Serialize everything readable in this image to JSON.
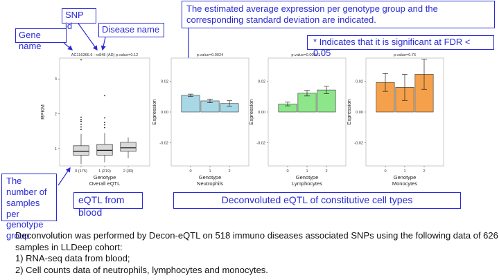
{
  "callouts": {
    "gene_name": "Gene name",
    "snp_id": "SNP id",
    "disease_name": "Disease  name",
    "estimated": "The estimated average expression per genotype group and the corresponding standard deviation are indicated.",
    "significance": "* Indicates that it is significant at FDR < 0.05",
    "num_samples": "The number of samples per genotype group",
    "eqtl_blood": "eQTL from blood",
    "deconvoluted": "Deconvoluted eQTL of constitutive cell types"
  },
  "description": {
    "line1": "Deconvolution was performed by Decon-eQTL on 518 immuno diseases associated SNPs using the following data of 626",
    "line2": "samples in LLDeep cohort:",
    "line3": "1) RNA-seq data from blood;",
    "line4": "2) Cell counts data of neutrophils, lymphocytes and monocytes."
  },
  "colors": {
    "callout": "#2a2ad6",
    "neutrophils": "#a8d8e6",
    "lymphocytes": "#8ee68a",
    "monocytes": "#f5a04a",
    "box_fill": "#d9d9d9"
  },
  "chart_data": [
    {
      "type": "box",
      "title": "AC116366.6 - rs848 (AD) p.value=0.12",
      "xlabel": "Genotype",
      "xlabel2": "Overall eQTL",
      "ylabel": "RPKM",
      "categories": [
        "0 (175)",
        "1 (219)",
        "2 (30)"
      ],
      "yticks": [
        "1",
        "2",
        "3"
      ],
      "ylim": [
        0.5,
        3.6
      ],
      "boxes": [
        {
          "min": 0.55,
          "q1": 0.81,
          "median": 0.92,
          "q3": 1.08,
          "max": 1.42,
          "outliers": [
            1.55,
            1.62,
            1.7,
            1.78,
            1.83,
            1.9,
            3.55
          ]
        },
        {
          "min": 0.6,
          "q1": 0.81,
          "median": 0.95,
          "q3": 1.12,
          "max": 1.45,
          "outliers": [
            1.6,
            1.68,
            1.75,
            1.88,
            2.52
          ]
        },
        {
          "min": 0.72,
          "q1": 0.92,
          "median": 1.02,
          "q3": 1.18,
          "max": 1.32,
          "outliers": []
        }
      ]
    },
    {
      "type": "bar",
      "title": "p.value=0.0024",
      "xlabel": "Genotype",
      "xlabel2": "Neutrophils",
      "ylabel": "Expression",
      "categories": [
        "0",
        "1",
        "2"
      ],
      "yticks": [
        "0.02",
        "0.00",
        "-0.02"
      ],
      "ylim": [
        -0.035,
        0.035
      ],
      "values": [
        0.0108,
        0.0072,
        0.0055
      ],
      "errors": [
        0.0008,
        0.0012,
        0.0018
      ]
    },
    {
      "type": "bar",
      "title": "p.value=0.00041 *",
      "xlabel": "Genotype",
      "xlabel2": "Lymphocytes",
      "ylabel": "Expression",
      "categories": [
        "0",
        "1",
        "2"
      ],
      "yticks": [
        "0.02",
        "0.00",
        "-0.02"
      ],
      "ylim": [
        -0.035,
        0.035
      ],
      "values": [
        0.0052,
        0.0122,
        0.0143
      ],
      "errors": [
        0.0012,
        0.0018,
        0.0024
      ]
    },
    {
      "type": "bar",
      "title": "p.value=0.76",
      "xlabel": "Genotype",
      "xlabel2": "Monocytes",
      "ylabel": "Expression",
      "categories": [
        "0",
        "1",
        "2"
      ],
      "yticks": [
        "0.02",
        "0.00",
        "-0.02"
      ],
      "ylim": [
        -0.035,
        0.035
      ],
      "values": [
        0.0192,
        0.016,
        0.0245
      ],
      "errors": [
        0.0058,
        0.0085,
        0.0098
      ]
    }
  ]
}
